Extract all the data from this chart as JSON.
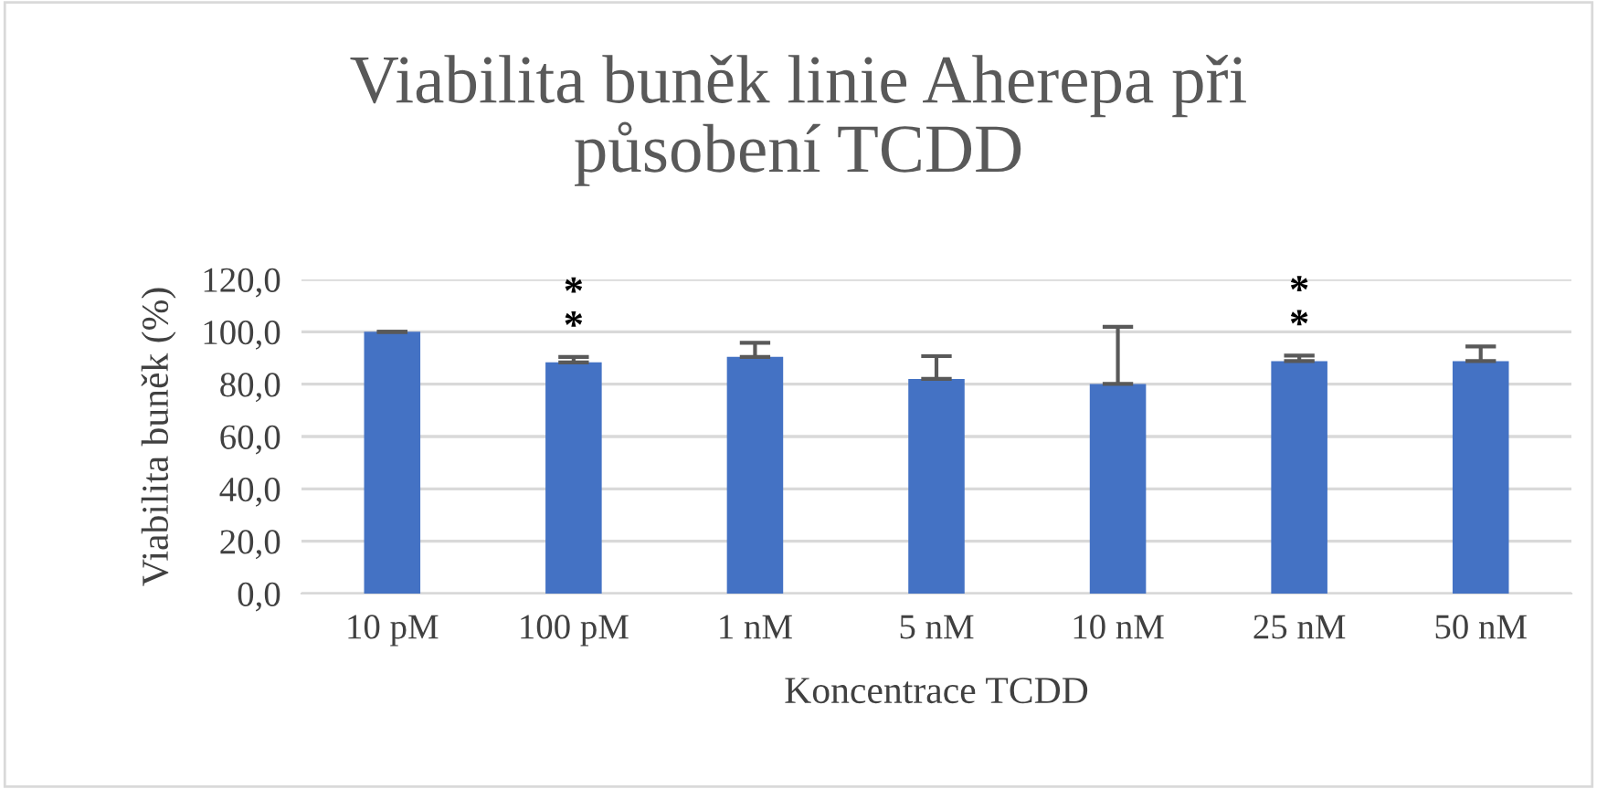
{
  "chart_data": {
    "type": "bar",
    "title": "Viabilita buněk linie Aherepa při působení TCDD",
    "xlabel": "Koncentrace TCDD",
    "ylabel": "Viabilita buněk (%)",
    "categories": [
      "10 pM",
      "100 pM",
      "1 nM",
      "5 nM",
      "10 nM",
      "25 nM",
      "50 nM"
    ],
    "values": [
      100.0,
      88.3,
      90.4,
      82.0,
      80.1,
      88.8,
      88.8
    ],
    "errors": [
      [
        100.0,
        100.0
      ],
      [
        88.3,
        90.4
      ],
      [
        90.4,
        95.8
      ],
      [
        82.0,
        90.7
      ],
      [
        80.1,
        101.9
      ],
      [
        88.8,
        90.9
      ],
      [
        88.8,
        94.4
      ]
    ],
    "color": "#4472c4",
    "ylim": [
      0,
      120
    ],
    "yticks": [
      {
        "value": 0,
        "label": "0,0"
      },
      {
        "value": 20,
        "label": "20,0"
      },
      {
        "value": 40,
        "label": "40,0"
      },
      {
        "value": 60,
        "label": "60,0"
      },
      {
        "value": 80,
        "label": "80,0"
      },
      {
        "value": 100,
        "label": "100,0"
      },
      {
        "value": 120,
        "label": "120,0"
      }
    ],
    "grid": "y",
    "annotations": [
      {
        "text": "*\n*",
        "x": "100 pM",
        "y": 90.4
      },
      {
        "text": "*\n*",
        "x": "25 nM",
        "y": 90.9
      }
    ]
  }
}
